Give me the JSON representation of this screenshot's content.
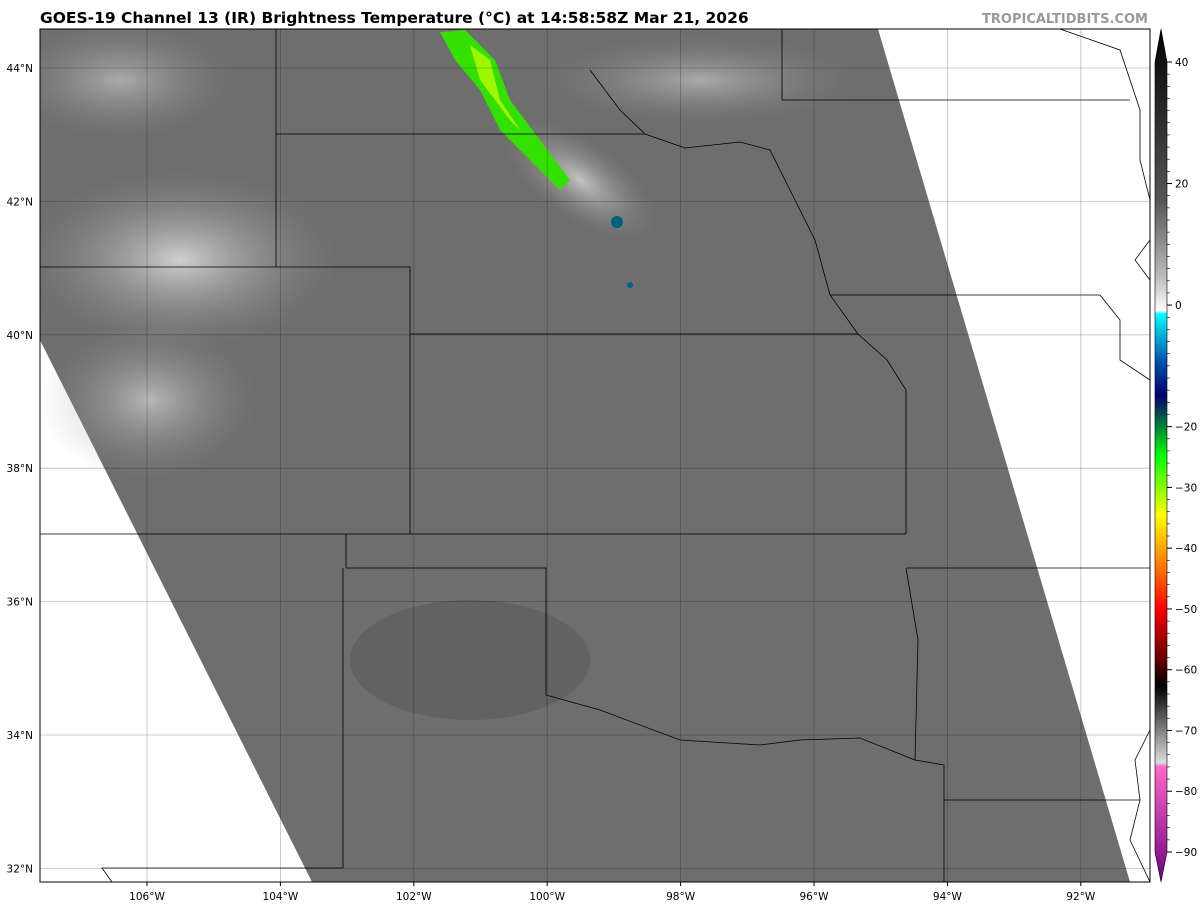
{
  "header": {
    "title": "GOES-19 Channel 13 (IR) Brightness Temperature (°C) at 14:58:58Z Mar 21, 2026",
    "brand": "TROPICALTIDBITS.COM"
  },
  "map": {
    "longitude_labels": [
      "106°W",
      "104°W",
      "102°W",
      "100°W",
      "98°W",
      "96°W",
      "94°W",
      "92°W"
    ],
    "latitude_labels": [
      "44°N",
      "42°N",
      "40°N",
      "38°N",
      "36°N",
      "34°N",
      "32°N"
    ],
    "background_color": "#6e6e6e",
    "cold_cloud_color": "#33e000"
  },
  "colorbar": {
    "ticks": [
      "40",
      "20",
      "0",
      "−20",
      "−30",
      "−40",
      "−50",
      "−60",
      "−70",
      "−80",
      "−90"
    ],
    "tick_values": [
      40,
      20,
      0,
      -20,
      -30,
      -40,
      -50,
      -60,
      -70,
      -80,
      -90
    ],
    "range": [
      -95,
      45
    ]
  }
}
